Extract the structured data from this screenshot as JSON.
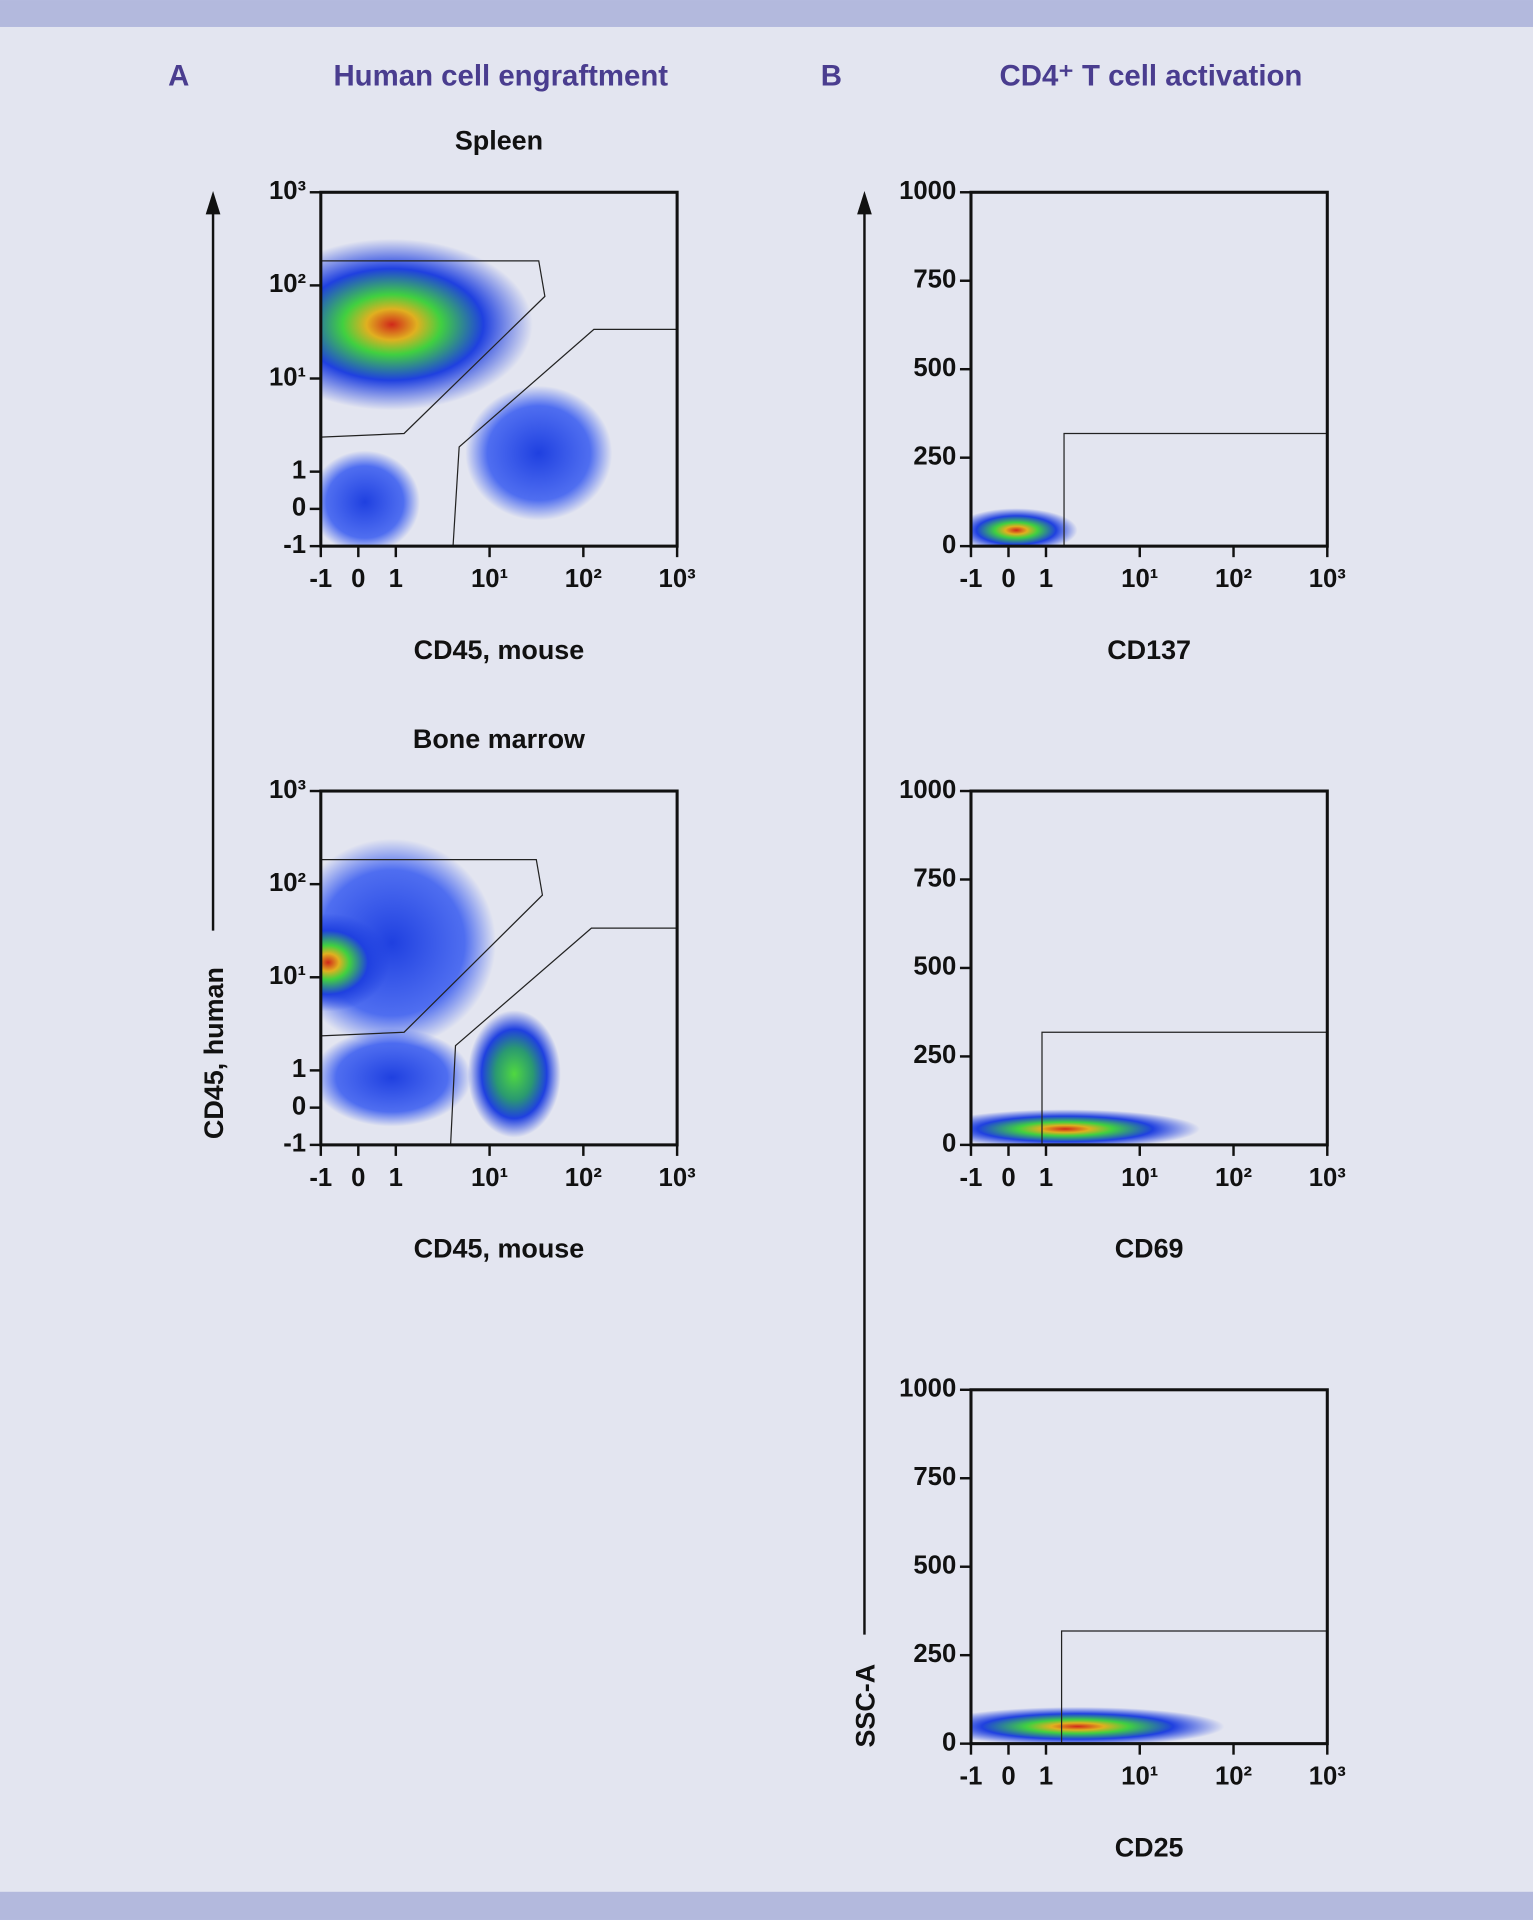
{
  "panels": [
    {
      "label": "A",
      "title": "Human cell engraftment",
      "ylabel": "CD45, human"
    },
    {
      "label": "B",
      "title": "CD4⁺ T cell activation",
      "ylabel": "SSC-A"
    }
  ],
  "chart_data": [
    {
      "type": "scatter",
      "title": "Spleen",
      "xlabel": "CD45, mouse",
      "xscale": "biexponential",
      "yscale": "biexponential",
      "xlim": [
        -1,
        1000
      ],
      "ylim": [
        -1,
        1000
      ],
      "xticks": [
        -1,
        0,
        1,
        {
          "value": 10,
          "label": "10¹"
        },
        {
          "value": 100,
          "label": "10²"
        },
        {
          "value": 1000,
          "label": "10³"
        }
      ],
      "yticks": [
        -1,
        0,
        1,
        {
          "value": 10,
          "label": "10¹"
        },
        {
          "value": 100,
          "label": "10²"
        },
        {
          "value": 1000,
          "label": "10³"
        }
      ]
    },
    {
      "type": "scatter",
      "title": "Bone marrow",
      "xlabel": "CD45, mouse",
      "xscale": "biexponential",
      "yscale": "biexponential",
      "xlim": [
        -1,
        1000
      ],
      "ylim": [
        -1,
        1000
      ],
      "xticks": [
        -1,
        0,
        1,
        {
          "value": 10,
          "label": "10¹"
        },
        {
          "value": 100,
          "label": "10²"
        },
        {
          "value": 1000,
          "label": "10³"
        }
      ],
      "yticks": [
        -1,
        0,
        1,
        {
          "value": 10,
          "label": "10¹"
        },
        {
          "value": 100,
          "label": "10²"
        },
        {
          "value": 1000,
          "label": "10³"
        }
      ]
    },
    {
      "type": "scatter",
      "xlabel": "CD137",
      "xscale": "biexponential",
      "yscale": "linear",
      "xlim": [
        -1,
        1000
      ],
      "ylim": [
        0,
        1000
      ],
      "xticks": [
        -1,
        0,
        1,
        {
          "value": 10,
          "label": "10¹"
        },
        {
          "value": 100,
          "label": "10²"
        },
        {
          "value": 1000,
          "label": "10³"
        }
      ],
      "yticks": [
        0,
        250,
        500,
        750,
        1000
      ]
    },
    {
      "type": "scatter",
      "xlabel": "CD69",
      "xscale": "biexponential",
      "yscale": "linear",
      "xlim": [
        -1,
        1000
      ],
      "ylim": [
        0,
        1000
      ],
      "xticks": [
        -1,
        0,
        1,
        {
          "value": 10,
          "label": "10¹"
        },
        {
          "value": 100,
          "label": "10²"
        },
        {
          "value": 1000,
          "label": "10³"
        }
      ],
      "yticks": [
        0,
        250,
        500,
        750,
        1000
      ]
    },
    {
      "type": "scatter",
      "xlabel": "CD25",
      "xscale": "biexponential",
      "yscale": "linear",
      "xlim": [
        -1,
        1000
      ],
      "ylim": [
        0,
        1000
      ],
      "xticks": [
        -1,
        0,
        1,
        {
          "value": 10,
          "label": "10¹"
        },
        {
          "value": 100,
          "label": "10²"
        },
        {
          "value": 1000,
          "label": "10³"
        }
      ],
      "yticks": [
        0,
        250,
        500,
        750,
        1000
      ]
    }
  ]
}
